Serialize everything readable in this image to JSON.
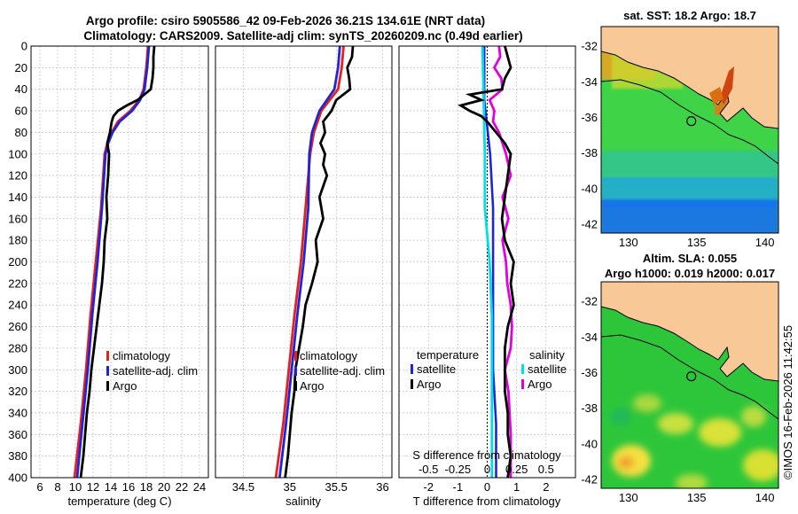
{
  "title_line1": "Argo profile: csiro 5905586_42 09-Feb-2026 36.21S 134.61E (NRT data)",
  "title_line2": "Climatology: CARS2009. Satellite-adj clim: synTS_20260209.nc (0.49d earlier)",
  "watermark": "©IMOS 16-Feb-2026 11:42:55",
  "chart_data": [
    {
      "id": "temperature",
      "type": "line",
      "xlabel": "temperature (deg C)",
      "xlim": [
        5,
        25
      ],
      "xticks": [
        6,
        8,
        10,
        12,
        14,
        16,
        18,
        20,
        22,
        24
      ],
      "ylim": [
        0,
        400
      ],
      "yticks": [
        0,
        20,
        40,
        60,
        80,
        100,
        120,
        140,
        160,
        180,
        200,
        220,
        240,
        260,
        280,
        300,
        320,
        340,
        360,
        380,
        400
      ],
      "legend": [
        "climatology",
        "satellite-adj. clim",
        "Argo"
      ],
      "series": [
        {
          "name": "climatology",
          "color": "#e8201c",
          "depth": [
            0,
            20,
            40,
            50,
            60,
            70,
            80,
            90,
            100,
            150,
            200,
            250,
            300,
            350,
            400
          ],
          "values": [
            18.2,
            18.0,
            17.7,
            17.2,
            16.2,
            14.8,
            14.1,
            13.6,
            13.3,
            12.9,
            12.3,
            11.7,
            11.2,
            10.6,
            9.9
          ]
        },
        {
          "name": "satellite-adj. clim",
          "color": "#1f25d6",
          "depth": [
            0,
            20,
            40,
            50,
            60,
            70,
            80,
            90,
            100,
            150,
            200,
            250,
            300,
            350,
            400
          ],
          "values": [
            18.3,
            18.1,
            17.8,
            17.3,
            16.4,
            15.0,
            14.2,
            13.7,
            13.4,
            13.0,
            12.5,
            11.9,
            11.4,
            10.8,
            10.2
          ]
        },
        {
          "name": "Argo",
          "color": "#000000",
          "depth": [
            0,
            10,
            20,
            30,
            40,
            50,
            55,
            60,
            65,
            70,
            80,
            90,
            100,
            120,
            140,
            160,
            180,
            200,
            220,
            240,
            260,
            280,
            300,
            320,
            340,
            360,
            380,
            400
          ],
          "values": [
            18.9,
            18.8,
            18.8,
            18.7,
            18.5,
            17.0,
            15.8,
            14.8,
            14.3,
            14.1,
            13.9,
            13.6,
            13.8,
            13.7,
            13.5,
            13.6,
            13.3,
            13.2,
            13.0,
            12.7,
            12.4,
            12.1,
            11.8,
            11.6,
            11.3,
            11.1,
            10.9,
            10.6
          ]
        }
      ]
    },
    {
      "id": "salinity",
      "type": "line",
      "xlabel": "salinity",
      "xlim": [
        34.2,
        36.1
      ],
      "xticks": [
        34.5,
        35,
        35.5,
        36
      ],
      "xticklabels": [
        "34.5",
        "35",
        "35.5",
        "36"
      ],
      "ylim": [
        0,
        400
      ],
      "legend": [
        "climatology",
        "satellite-adj. clim",
        "Argo"
      ],
      "series": [
        {
          "name": "climatology",
          "color": "#e8201c",
          "depth": [
            0,
            20,
            40,
            60,
            80,
            100,
            150,
            200,
            250,
            300,
            350,
            400
          ],
          "values": [
            35.58,
            35.56,
            35.52,
            35.34,
            35.26,
            35.22,
            35.17,
            35.12,
            35.05,
            34.99,
            34.93,
            34.85
          ]
        },
        {
          "name": "satellite-adj. clim",
          "color": "#1f25d6",
          "depth": [
            0,
            20,
            40,
            60,
            80,
            100,
            150,
            200,
            250,
            300,
            350,
            400
          ],
          "values": [
            35.54,
            35.52,
            35.48,
            35.32,
            35.24,
            35.21,
            35.2,
            35.15,
            35.08,
            35.02,
            34.96,
            34.89
          ]
        },
        {
          "name": "Argo",
          "color": "#000000",
          "depth": [
            0,
            10,
            20,
            30,
            40,
            50,
            60,
            70,
            80,
            90,
            100,
            110,
            120,
            140,
            160,
            180,
            200,
            220,
            240,
            260,
            280,
            300,
            320,
            340,
            360,
            380,
            400
          ],
          "values": [
            35.68,
            35.67,
            35.62,
            35.64,
            35.65,
            35.5,
            35.45,
            35.36,
            35.38,
            35.33,
            35.38,
            35.36,
            35.4,
            35.32,
            35.36,
            35.28,
            35.3,
            35.24,
            35.17,
            35.14,
            35.1,
            35.06,
            35.05,
            35.02,
            35.0,
            34.98,
            34.95
          ]
        }
      ]
    },
    {
      "id": "difference",
      "type": "line",
      "xlabel": "T difference from climatology",
      "xlim": [
        -3,
        3
      ],
      "xticks": [
        -2,
        -1,
        0,
        1,
        2
      ],
      "xticklabels": [
        "-2",
        "-1",
        "0",
        "1",
        "2"
      ],
      "s_label": "S difference from climatology",
      "s_ticks": [
        -0.5,
        -0.25,
        0,
        0.25,
        0.5
      ],
      "s_ticklabels": [
        "-0.5",
        "-0.25",
        "0",
        "0.25",
        "0.5"
      ],
      "ylim": [
        0,
        400
      ],
      "legend_t_title": "temperature",
      "legend_s_title": "salinity",
      "legend": [
        "satellite",
        "Argo",
        "satellite",
        "Argo"
      ],
      "series": [
        {
          "name": "T satellite",
          "color": "#1f25d6",
          "depth": [
            0,
            50,
            100,
            150,
            200,
            250,
            300,
            350,
            400
          ],
          "values": [
            -0.1,
            -0.1,
            0.1,
            0.2,
            0.2,
            0.2,
            0.2,
            0.3,
            0.3
          ]
        },
        {
          "name": "T Argo",
          "color": "#000000",
          "depth": [
            0,
            10,
            20,
            30,
            40,
            45,
            50,
            55,
            60,
            65,
            70,
            80,
            90,
            100,
            120,
            140,
            160,
            180,
            200,
            220,
            240,
            260,
            280,
            300,
            320,
            340,
            360,
            380,
            400
          ],
          "values": [
            0.6,
            0.7,
            0.8,
            0.6,
            0.5,
            -0.6,
            -0.2,
            -0.9,
            -0.6,
            -0.2,
            0.0,
            0.3,
            0.6,
            0.8,
            0.7,
            0.6,
            0.5,
            0.6,
            0.9,
            0.8,
            0.9,
            0.7,
            0.6,
            0.6,
            0.6,
            0.7,
            0.7,
            0.8,
            0.7
          ]
        },
        {
          "name": "S satellite",
          "color": "#00dfe8",
          "depth": [
            0,
            50,
            100,
            150,
            200,
            250,
            300,
            350,
            400
          ],
          "values": [
            -0.04,
            -0.03,
            -0.02,
            -0.02,
            0.02,
            0.04,
            0.04,
            0.04,
            0.04
          ]
        },
        {
          "name": "S Argo",
          "color": "#e000e0",
          "depth": [
            0,
            10,
            20,
            30,
            40,
            50,
            60,
            70,
            80,
            100,
            120,
            140,
            160,
            180,
            200,
            220,
            240,
            260,
            280,
            300,
            320,
            340,
            360,
            380,
            400
          ],
          "values": [
            0.1,
            0.11,
            0.06,
            0.12,
            0.13,
            0.02,
            0.06,
            0.05,
            0.1,
            0.16,
            0.2,
            0.13,
            0.18,
            0.13,
            0.16,
            0.17,
            0.2,
            0.21,
            0.2,
            0.15,
            0.18,
            0.19,
            0.2,
            0.2,
            0.2
          ]
        }
      ]
    },
    {
      "id": "sst_map",
      "type": "heatmap",
      "title": "sat. SST: 18.2 Argo: 18.7",
      "xticks": [
        130,
        135,
        140
      ],
      "xticklabels": [
        "130",
        "135",
        "140"
      ],
      "yticks": [
        -32,
        -34,
        -36,
        -38,
        -40,
        -42
      ],
      "yticklabels": [
        "-32",
        "-34",
        "-36",
        "-38",
        "-40",
        "-42"
      ],
      "xlim": [
        128,
        141
      ],
      "ylim": [
        -42.5,
        -30.9
      ],
      "argo_position": [
        134.61,
        -36.21
      ]
    },
    {
      "id": "sla_map",
      "type": "heatmap",
      "title_line1": "Altim. SLA: 0.055",
      "title_line2": "Argo h1000: 0.019 h2000: 0.017",
      "xticks": [
        130,
        135,
        140
      ],
      "xticklabels": [
        "130",
        "135",
        "140"
      ],
      "yticks": [
        -32,
        -34,
        -36,
        -38,
        -40,
        -42
      ],
      "yticklabels": [
        "-32",
        "-34",
        "-36",
        "-38",
        "-40",
        "-42"
      ],
      "xlim": [
        128,
        141
      ],
      "ylim": [
        -42.5,
        -30.9
      ],
      "argo_position": [
        134.61,
        -36.21
      ]
    }
  ]
}
